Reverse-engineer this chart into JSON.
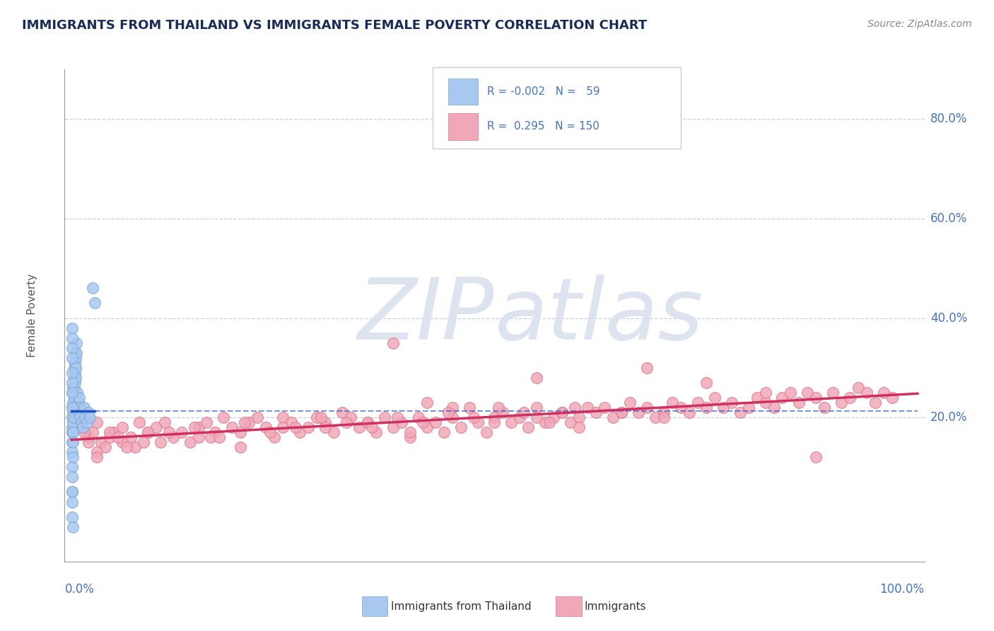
{
  "title": "IMMIGRANTS FROM THAILAND VS IMMIGRANTS FEMALE POVERTY CORRELATION CHART",
  "source": "Source: ZipAtlas.com",
  "ylabel": "Female Poverty",
  "color_blue": "#A8C8F0",
  "color_pink": "#F0A8B8",
  "color_blue_edge": "#7AAAD8",
  "color_pink_edge": "#E07890",
  "color_blue_line": "#2050C0",
  "color_pink_line": "#D03060",
  "color_title": "#1a2d5a",
  "color_source": "#888888",
  "color_axis_labels": "#4472C4",
  "color_grid": "#c8d0e0",
  "watermark_color": "#dde4f0",
  "blue_r": "-0.002",
  "blue_n": "59",
  "pink_r": "0.295",
  "pink_n": "150",
  "xlim": [
    -0.008,
    1.008
  ],
  "ylim": [
    -0.09,
    0.9
  ],
  "ytick_positions": [
    0.2,
    0.4,
    0.6,
    0.8
  ],
  "ytick_labels": [
    "20.0%",
    "40.0%",
    "60.0%",
    "80.0%"
  ],
  "blue_x": [
    0.001,
    0.001,
    0.001,
    0.001,
    0.001,
    0.001,
    0.001,
    0.001,
    0.001,
    0.001,
    0.001,
    0.001,
    0.002,
    0.002,
    0.002,
    0.002,
    0.002,
    0.002,
    0.002,
    0.002,
    0.003,
    0.003,
    0.003,
    0.003,
    0.003,
    0.003,
    0.004,
    0.004,
    0.004,
    0.004,
    0.005,
    0.005,
    0.005,
    0.006,
    0.006,
    0.007,
    0.008,
    0.008,
    0.009,
    0.01,
    0.01,
    0.012,
    0.013,
    0.015,
    0.016,
    0.018,
    0.02,
    0.022,
    0.025,
    0.028,
    0.001,
    0.001,
    0.001,
    0.001,
    0.001,
    0.001,
    0.001,
    0.001,
    0.001
  ],
  "blue_y": [
    0.25,
    0.22,
    0.2,
    0.18,
    0.17,
    0.15,
    0.13,
    0.1,
    0.08,
    0.05,
    0.03,
    0.0,
    0.26,
    0.23,
    0.21,
    0.19,
    0.17,
    0.15,
    0.12,
    -0.02,
    0.3,
    0.28,
    0.26,
    0.24,
    0.22,
    0.2,
    0.33,
    0.31,
    0.29,
    0.27,
    0.32,
    0.3,
    0.28,
    0.35,
    0.33,
    0.25,
    0.23,
    0.21,
    0.24,
    0.22,
    0.2,
    0.19,
    0.18,
    0.22,
    0.2,
    0.19,
    0.21,
    0.2,
    0.46,
    0.43,
    0.38,
    0.36,
    0.34,
    0.32,
    0.29,
    0.27,
    0.25,
    0.22,
    0.05
  ],
  "pink_x": [
    0.01,
    0.02,
    0.025,
    0.03,
    0.035,
    0.04,
    0.045,
    0.05,
    0.06,
    0.07,
    0.08,
    0.09,
    0.1,
    0.11,
    0.12,
    0.13,
    0.14,
    0.15,
    0.16,
    0.17,
    0.18,
    0.19,
    0.2,
    0.21,
    0.22,
    0.23,
    0.24,
    0.25,
    0.26,
    0.27,
    0.28,
    0.29,
    0.3,
    0.31,
    0.32,
    0.33,
    0.34,
    0.35,
    0.36,
    0.37,
    0.38,
    0.39,
    0.4,
    0.41,
    0.42,
    0.43,
    0.44,
    0.45,
    0.46,
    0.47,
    0.48,
    0.49,
    0.5,
    0.51,
    0.52,
    0.53,
    0.54,
    0.55,
    0.56,
    0.57,
    0.58,
    0.59,
    0.6,
    0.61,
    0.62,
    0.63,
    0.64,
    0.65,
    0.66,
    0.67,
    0.68,
    0.69,
    0.7,
    0.71,
    0.72,
    0.73,
    0.74,
    0.75,
    0.76,
    0.77,
    0.78,
    0.79,
    0.8,
    0.81,
    0.82,
    0.83,
    0.84,
    0.85,
    0.86,
    0.87,
    0.88,
    0.89,
    0.9,
    0.91,
    0.92,
    0.93,
    0.94,
    0.95,
    0.96,
    0.97,
    0.02,
    0.045,
    0.075,
    0.105,
    0.165,
    0.25,
    0.35,
    0.45,
    0.55,
    0.65,
    0.03,
    0.06,
    0.09,
    0.15,
    0.2,
    0.3,
    0.4,
    0.5,
    0.6,
    0.7,
    0.03,
    0.065,
    0.58,
    0.42,
    0.38,
    0.55,
    0.68,
    0.75,
    0.82,
    0.88,
    0.015,
    0.055,
    0.085,
    0.115,
    0.145,
    0.175,
    0.205,
    0.235,
    0.265,
    0.295,
    0.325,
    0.355,
    0.385,
    0.415,
    0.445,
    0.475,
    0.505,
    0.535,
    0.565,
    0.595
  ],
  "pink_y": [
    0.18,
    0.16,
    0.17,
    0.19,
    0.15,
    0.14,
    0.16,
    0.17,
    0.18,
    0.16,
    0.19,
    0.17,
    0.18,
    0.19,
    0.16,
    0.17,
    0.15,
    0.18,
    0.19,
    0.17,
    0.2,
    0.18,
    0.17,
    0.19,
    0.2,
    0.18,
    0.16,
    0.2,
    0.19,
    0.17,
    0.18,
    0.2,
    0.19,
    0.17,
    0.21,
    0.2,
    0.18,
    0.19,
    0.17,
    0.2,
    0.18,
    0.19,
    0.16,
    0.2,
    0.18,
    0.19,
    0.17,
    0.2,
    0.18,
    0.22,
    0.19,
    0.17,
    0.2,
    0.21,
    0.19,
    0.2,
    0.18,
    0.22,
    0.19,
    0.2,
    0.21,
    0.19,
    0.2,
    0.22,
    0.21,
    0.22,
    0.2,
    0.21,
    0.23,
    0.21,
    0.22,
    0.2,
    0.21,
    0.23,
    0.22,
    0.21,
    0.23,
    0.22,
    0.24,
    0.22,
    0.23,
    0.21,
    0.22,
    0.24,
    0.23,
    0.22,
    0.24,
    0.25,
    0.23,
    0.25,
    0.24,
    0.22,
    0.25,
    0.23,
    0.24,
    0.26,
    0.25,
    0.23,
    0.25,
    0.24,
    0.15,
    0.17,
    0.14,
    0.15,
    0.16,
    0.18,
    0.19,
    0.22,
    0.2,
    0.21,
    0.13,
    0.15,
    0.17,
    0.16,
    0.14,
    0.18,
    0.17,
    0.19,
    0.18,
    0.2,
    0.12,
    0.14,
    0.21,
    0.23,
    0.35,
    0.28,
    0.3,
    0.27,
    0.25,
    0.12,
    0.17,
    0.16,
    0.15,
    0.17,
    0.18,
    0.16,
    0.19,
    0.17,
    0.18,
    0.2,
    0.19,
    0.18,
    0.2,
    0.19,
    0.21,
    0.2,
    0.22,
    0.21,
    0.19,
    0.22
  ],
  "blue_trendline_x": [
    0.0,
    0.028
  ],
  "blue_trendline_y": [
    0.213,
    0.213
  ],
  "blue_dashline_x": [
    0.0,
    1.0
  ],
  "blue_dashline_y": [
    0.213,
    0.213
  ],
  "pink_trendline_x": [
    0.0,
    1.0
  ],
  "pink_trendline_y": [
    0.155,
    0.248
  ]
}
